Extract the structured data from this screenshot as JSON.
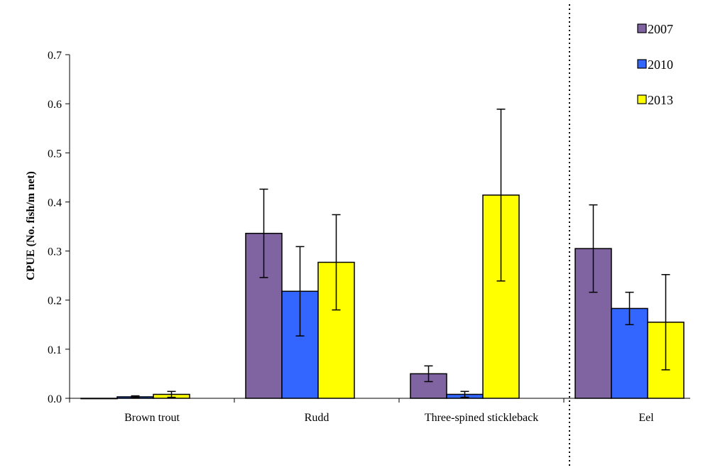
{
  "chart_data": {
    "type": "bar",
    "title": "",
    "xlabel": "",
    "ylabel": "CPUE (No. fish/m net)",
    "ylim": [
      0,
      0.7
    ],
    "yticks": [
      "0.0",
      "0.1",
      "0.2",
      "0.3",
      "0.4",
      "0.5",
      "0.6",
      "0.7"
    ],
    "categories": [
      "Brown trout",
      "Rudd",
      "Three-spined stickleback",
      "Eel"
    ],
    "series": [
      {
        "name": "2007",
        "color": "#8064A2",
        "values": [
          0.0,
          0.336,
          0.05,
          0.305
        ],
        "errors": [
          0.0,
          0.09,
          0.016,
          0.089
        ]
      },
      {
        "name": "2010",
        "color": "#3366FF",
        "values": [
          0.003,
          0.218,
          0.008,
          0.183
        ],
        "errors": [
          0.002,
          0.091,
          0.006,
          0.033
        ]
      },
      {
        "name": "2013",
        "color": "#FFFF00",
        "values": [
          0.008,
          0.277,
          0.414,
          0.155
        ],
        "errors": [
          0.006,
          0.097,
          0.175,
          0.097
        ]
      }
    ],
    "grid": false,
    "legend": "top-right",
    "separator": {
      "type": "dotted-vertical",
      "between_categories": [
        "Three-spined stickleback",
        "Eel"
      ]
    }
  }
}
